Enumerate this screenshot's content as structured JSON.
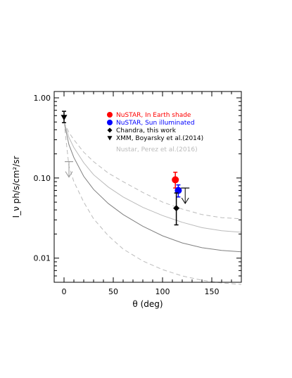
{
  "chart_data": {
    "type": "scatter",
    "xlabel": "θ (deg)",
    "ylabel": "I_ν ph/s/cm²/sr",
    "xlim": [
      -10,
      180
    ],
    "ylim": [
      0.005,
      1.2
    ],
    "yscale": "log",
    "x_ticks": [
      0,
      50,
      100,
      150
    ],
    "x_tick_labels": [
      "0",
      "50",
      "100",
      "150"
    ],
    "y_ticks": [
      0.01,
      0.1,
      1.0
    ],
    "y_tick_labels": [
      "0.01",
      "0.10",
      "1.00"
    ],
    "grid": false,
    "legend_position": "top-right",
    "series": [
      {
        "name": "NuSTAR, In Earth shade",
        "color": "#ff0000",
        "marker": "circle",
        "points": [
          {
            "x": 113,
            "y": 0.095,
            "yerr_low": 0.075,
            "yerr_high": 0.118
          }
        ]
      },
      {
        "name": "NuSTAR, Sun illuminated",
        "color": "#0000ff",
        "marker": "circle",
        "points": [
          {
            "x": 116,
            "y": 0.07,
            "yerr_low": 0.058,
            "yerr_high": 0.082
          }
        ]
      },
      {
        "name": "Chandra, this work",
        "color": "#000000",
        "marker": "diamond",
        "points": [
          {
            "x": 114,
            "y": 0.042,
            "yerr_low": 0.026,
            "yerr_high": 0.065
          }
        ]
      },
      {
        "name": "XMM, Boyarsky et al.(2014)",
        "color": "#000000",
        "marker": "triangle-down",
        "points": [
          {
            "x": 0,
            "y": 0.57,
            "yerr_low": 0.49,
            "yerr_high": 0.68
          }
        ]
      },
      {
        "name": "Nustar, Perez et al.(2016)",
        "color": "#bbbbbb",
        "marker": "none",
        "points": []
      }
    ],
    "upper_limits": [
      {
        "x": 123,
        "y": 0.075,
        "color": "#000000"
      },
      {
        "x": 5,
        "y": 0.16,
        "color": "#999999"
      }
    ],
    "curves": [
      {
        "name": "model-central",
        "color": "#808080",
        "style": "solid",
        "x": [
          0,
          5,
          10,
          20,
          30,
          45,
          60,
          80,
          100,
          120,
          140,
          160,
          180
        ],
        "y": [
          0.5,
          0.26,
          0.18,
          0.105,
          0.072,
          0.048,
          0.035,
          0.025,
          0.019,
          0.0155,
          0.0135,
          0.0125,
          0.012
        ]
      },
      {
        "name": "model-upper",
        "color": "#bbbbbb",
        "style": "dashed",
        "x": [
          0,
          5,
          10,
          20,
          30,
          45,
          60,
          80,
          100,
          120,
          140,
          160,
          180
        ],
        "y": [
          0.5,
          0.37,
          0.3,
          0.21,
          0.16,
          0.115,
          0.09,
          0.066,
          0.05,
          0.041,
          0.035,
          0.032,
          0.031
        ]
      },
      {
        "name": "model-lower",
        "color": "#bbbbbb",
        "style": "dashed",
        "x": [
          0,
          5,
          10,
          20,
          30,
          45,
          60,
          80,
          100,
          120,
          140,
          160,
          180
        ],
        "y": [
          0.5,
          0.14,
          0.09,
          0.05,
          0.031,
          0.019,
          0.013,
          0.0092,
          0.0072,
          0.006,
          0.0053,
          0.0049,
          0.0047
        ]
      },
      {
        "name": "model-alt",
        "color": "#bbbbbb",
        "style": "solid",
        "x": [
          0,
          5,
          10,
          20,
          30,
          45,
          60,
          80,
          100,
          120,
          140,
          160,
          180
        ],
        "y": [
          0.5,
          0.32,
          0.24,
          0.155,
          0.11,
          0.077,
          0.058,
          0.043,
          0.034,
          0.028,
          0.024,
          0.022,
          0.021
        ]
      }
    ]
  }
}
